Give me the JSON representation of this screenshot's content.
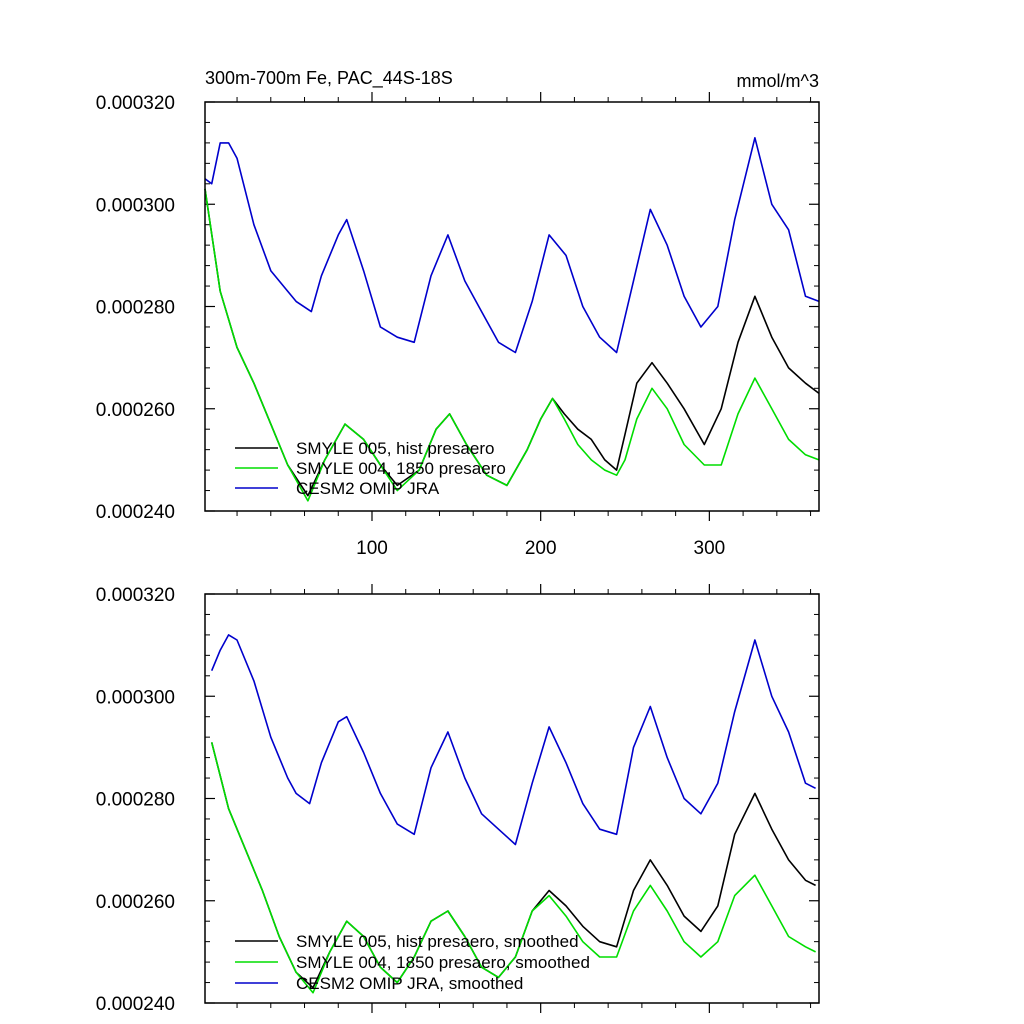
{
  "chart_data": [
    {
      "type": "line",
      "title": "300m-700m Fe, PAC_44S-18S",
      "units": "mmol/m^3",
      "xlim": [
        1,
        365
      ],
      "ylim": [
        0.00024,
        0.00032
      ],
      "xticks": [
        100,
        200,
        300
      ],
      "xtick_labels": [
        "100",
        "200",
        "300"
      ],
      "yticks": [
        0.00024,
        0.00026,
        0.00028,
        0.0003,
        0.00032
      ],
      "ytick_labels": [
        "0.000240",
        "0.000260",
        "0.000280",
        "0.000300",
        "0.000320"
      ],
      "grid": false,
      "legend_position": "bottom-left",
      "series": [
        {
          "name": "SMYLE 005, hist presaero",
          "color": "#000000",
          "x": [
            1,
            10,
            20,
            30,
            40,
            50,
            62,
            72,
            84,
            95,
            105,
            115,
            128,
            138,
            146,
            156,
            168,
            180,
            192,
            200,
            207,
            214,
            222,
            230,
            238,
            245,
            250,
            257,
            266,
            275,
            285,
            297,
            307,
            317,
            327,
            337,
            347,
            357,
            365
          ],
          "values": [
            0.000303,
            0.000283,
            0.000272,
            0.000265,
            0.000257,
            0.000249,
            0.000243,
            0.00025,
            0.000257,
            0.000254,
            0.000249,
            0.000245,
            0.000248,
            0.000256,
            0.000259,
            0.000253,
            0.000247,
            0.000245,
            0.000252,
            0.000258,
            0.000262,
            0.000259,
            0.000256,
            0.000254,
            0.00025,
            0.000248,
            0.000255,
            0.000265,
            0.000269,
            0.000265,
            0.00026,
            0.000253,
            0.00026,
            0.000273,
            0.000282,
            0.000274,
            0.000268,
            0.000265,
            0.000263
          ]
        },
        {
          "name": "SMYLE 004, 1850 presaero",
          "color": "#00dd00",
          "x": [
            1,
            10,
            20,
            30,
            40,
            50,
            62,
            72,
            84,
            95,
            105,
            115,
            128,
            138,
            146,
            156,
            168,
            180,
            192,
            200,
            207,
            214,
            222,
            230,
            238,
            245,
            250,
            257,
            266,
            275,
            285,
            297,
            307,
            317,
            327,
            337,
            347,
            357,
            365
          ],
          "values": [
            0.000303,
            0.000283,
            0.000272,
            0.000265,
            0.000257,
            0.000249,
            0.000242,
            0.00025,
            0.000257,
            0.000254,
            0.000249,
            0.000244,
            0.000248,
            0.000256,
            0.000259,
            0.000253,
            0.000247,
            0.000245,
            0.000252,
            0.000258,
            0.000262,
            0.000258,
            0.000253,
            0.00025,
            0.000248,
            0.000247,
            0.00025,
            0.000258,
            0.000264,
            0.00026,
            0.000253,
            0.000249,
            0.000249,
            0.000259,
            0.000266,
            0.00026,
            0.000254,
            0.000251,
            0.00025
          ]
        },
        {
          "name": "CESM2 OMIP JRA",
          "color": "#0000cc",
          "x": [
            1,
            5,
            10,
            15,
            20,
            30,
            40,
            50,
            55,
            64,
            70,
            80,
            85,
            95,
            105,
            115,
            125,
            135,
            145,
            155,
            165,
            175,
            185,
            195,
            205,
            215,
            225,
            235,
            245,
            255,
            265,
            275,
            285,
            295,
            305,
            315,
            327,
            337,
            347,
            357,
            365
          ],
          "values": [
            0.000305,
            0.000304,
            0.000312,
            0.000312,
            0.000309,
            0.000296,
            0.000287,
            0.000283,
            0.000281,
            0.000279,
            0.000286,
            0.000294,
            0.000297,
            0.000287,
            0.000276,
            0.000274,
            0.000273,
            0.000286,
            0.000294,
            0.000285,
            0.000279,
            0.000273,
            0.000271,
            0.000281,
            0.000294,
            0.00029,
            0.00028,
            0.000274,
            0.000271,
            0.000285,
            0.000299,
            0.000292,
            0.000282,
            0.000276,
            0.00028,
            0.000297,
            0.000313,
            0.0003,
            0.000295,
            0.000282,
            0.000281
          ]
        }
      ]
    },
    {
      "type": "line",
      "title": "",
      "units": "",
      "xlim": [
        1,
        365
      ],
      "ylim": [
        0.00024,
        0.00032
      ],
      "xticks": [
        100,
        200,
        300
      ],
      "xtick_labels": [],
      "yticks": [
        0.00024,
        0.00026,
        0.00028,
        0.0003,
        0.00032
      ],
      "ytick_labels": [
        "0.000240",
        "0.000260",
        "0.000280",
        "0.000300",
        "0.000320"
      ],
      "grid": false,
      "legend_position": "bottom-left",
      "series": [
        {
          "name": "SMYLE 005, hist presaero, smoothed",
          "color": "#000000",
          "x": [
            5,
            15,
            25,
            35,
            45,
            55,
            65,
            75,
            85,
            95,
            105,
            115,
            125,
            135,
            145,
            155,
            165,
            175,
            185,
            195,
            205,
            215,
            225,
            235,
            245,
            255,
            265,
            275,
            285,
            295,
            305,
            315,
            327,
            337,
            347,
            357,
            363
          ],
          "values": [
            0.000291,
            0.000278,
            0.00027,
            0.000262,
            0.000253,
            0.000246,
            0.000243,
            0.00025,
            0.000256,
            0.000253,
            0.000247,
            0.000244,
            0.000249,
            0.000256,
            0.000258,
            0.000253,
            0.000247,
            0.000245,
            0.000249,
            0.000258,
            0.000262,
            0.000259,
            0.000255,
            0.000252,
            0.000251,
            0.000262,
            0.000268,
            0.000263,
            0.000257,
            0.000254,
            0.000259,
            0.000273,
            0.000281,
            0.000274,
            0.000268,
            0.000264,
            0.000263
          ]
        },
        {
          "name": "SMYLE 004, 1850 presaero, smoothed",
          "color": "#00dd00",
          "x": [
            5,
            15,
            25,
            35,
            45,
            55,
            65,
            75,
            85,
            95,
            105,
            115,
            125,
            135,
            145,
            155,
            165,
            175,
            185,
            195,
            205,
            215,
            225,
            235,
            245,
            255,
            265,
            275,
            285,
            295,
            305,
            315,
            327,
            337,
            347,
            357,
            363
          ],
          "values": [
            0.000291,
            0.000278,
            0.00027,
            0.000262,
            0.000253,
            0.000246,
            0.000242,
            0.00025,
            0.000256,
            0.000253,
            0.000247,
            0.000244,
            0.000249,
            0.000256,
            0.000258,
            0.000253,
            0.000247,
            0.000245,
            0.000249,
            0.000258,
            0.000261,
            0.000257,
            0.000252,
            0.000249,
            0.000249,
            0.000258,
            0.000263,
            0.000258,
            0.000252,
            0.000249,
            0.000252,
            0.000261,
            0.000265,
            0.000259,
            0.000253,
            0.000251,
            0.00025
          ]
        },
        {
          "name": "CESM2 OMIP JRA, smoothed",
          "color": "#0000cc",
          "x": [
            5,
            10,
            15,
            20,
            30,
            40,
            50,
            55,
            63,
            70,
            80,
            85,
            95,
            105,
            115,
            125,
            135,
            145,
            155,
            165,
            175,
            185,
            195,
            205,
            215,
            225,
            235,
            245,
            255,
            265,
            275,
            285,
            295,
            305,
            315,
            327,
            337,
            347,
            357,
            363
          ],
          "values": [
            0.000305,
            0.000309,
            0.000312,
            0.000311,
            0.000303,
            0.000292,
            0.000284,
            0.000281,
            0.000279,
            0.000287,
            0.000295,
            0.000296,
            0.000289,
            0.000281,
            0.000275,
            0.000273,
            0.000286,
            0.000293,
            0.000284,
            0.000277,
            0.000274,
            0.000271,
            0.000283,
            0.000294,
            0.000287,
            0.000279,
            0.000274,
            0.000273,
            0.00029,
            0.000298,
            0.000288,
            0.00028,
            0.000277,
            0.000283,
            0.000297,
            0.000311,
            0.0003,
            0.000293,
            0.000283,
            0.000282
          ]
        }
      ]
    }
  ]
}
